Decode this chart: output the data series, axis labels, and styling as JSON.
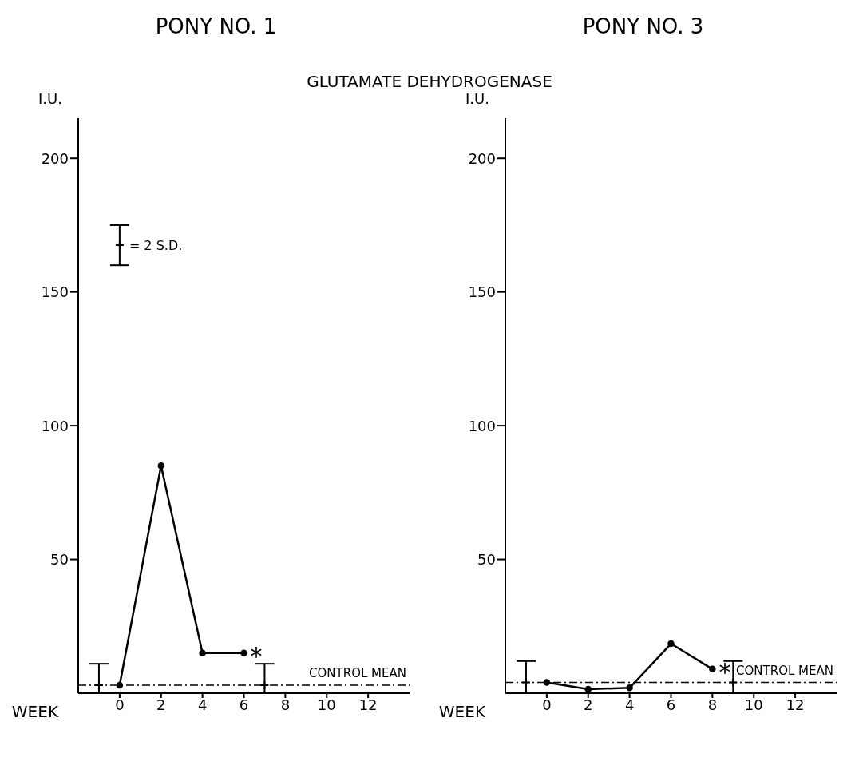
{
  "chart_data": [
    {
      "type": "line",
      "title": "PONY NO. 1",
      "subtitle": "GLUTAMATE DEHYDROGENASE",
      "xlabel": "WEEK",
      "ylabel": "I.U.",
      "xlim": [
        -2,
        14
      ],
      "ylim": [
        0,
        215
      ],
      "xticks": [
        0,
        2,
        4,
        6,
        8,
        10,
        12
      ],
      "yticks": [
        50,
        100,
        150,
        200
      ],
      "marker": "circle",
      "line_style": "solid",
      "series": [
        {
          "color": "#000000",
          "x": [
            0,
            2,
            4,
            6
          ],
          "values": [
            3,
            85,
            15,
            15
          ]
        },
        {
          "type": "scatter",
          "color": "#000000",
          "marker": "cross",
          "x": [
            -1,
            7
          ],
          "values": [
            3,
            3
          ],
          "errors": [
            [
              0,
              11
            ],
            [
              0,
              11
            ]
          ]
        },
        {
          "type": "scatter",
          "name": "= 2 S.D.",
          "color": "#000000",
          "marker": "cross",
          "x": [
            0
          ],
          "values": [
            167.5
          ],
          "errors": [
            [
              160,
              175
            ]
          ]
        }
      ],
      "ref_lines": [
        {
          "axis": "y",
          "value": 3,
          "label": "CONTROL MEAN",
          "line_style": "dashed",
          "color": "#000000"
        }
      ],
      "annotations": [
        {
          "text": "*",
          "x": 6,
          "y": 15
        }
      ]
    },
    {
      "type": "line",
      "title": "PONY NO. 3",
      "xlabel": "WEEK",
      "ylabel": "I.U.",
      "xlim": [
        -2,
        14
      ],
      "ylim": [
        0,
        215
      ],
      "xticks": [
        0,
        2,
        4,
        6,
        8,
        10,
        12
      ],
      "yticks": [
        50,
        100,
        150,
        200
      ],
      "marker": "circle",
      "line_style": "solid",
      "series": [
        {
          "color": "#000000",
          "x": [
            0,
            2,
            4,
            6,
            8
          ],
          "values": [
            4,
            1.5,
            2,
            18.5,
            9
          ]
        },
        {
          "type": "scatter",
          "color": "#000000",
          "marker": "cross",
          "x": [
            -1,
            9
          ],
          "values": [
            4,
            4
          ],
          "errors": [
            [
              0,
              12
            ],
            [
              0,
              12
            ]
          ]
        }
      ],
      "ref_lines": [
        {
          "axis": "y",
          "value": 4,
          "label": "CONTROL MEAN",
          "line_style": "dashed",
          "color": "#000000"
        }
      ],
      "annotations": [
        {
          "text": "*",
          "x": 8,
          "y": 9
        }
      ]
    }
  ]
}
